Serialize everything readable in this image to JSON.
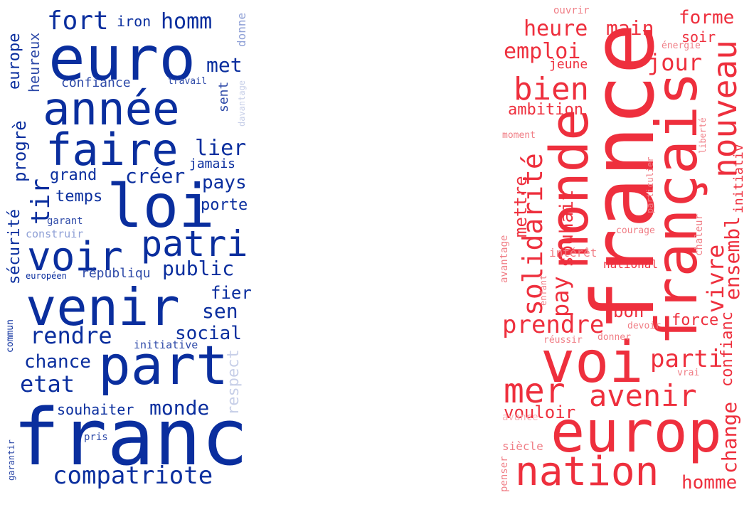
{
  "palette": {
    "blue_dark": "#0a2e9e",
    "blue_mid": "#2e4aa8",
    "blue_light": "#8fa0d6",
    "blue_pale": "#c7cfe8",
    "red": "#ee2f3d",
    "red_light": "#f07e86",
    "red_pale": "#f6b3b8"
  },
  "left_cloud": {
    "words": [
      {
        "text": "euro"
      },
      {
        "text": "année"
      },
      {
        "text": "faire"
      },
      {
        "text": "loi"
      },
      {
        "text": "voir"
      },
      {
        "text": "patri"
      },
      {
        "text": "venir"
      },
      {
        "text": "part"
      },
      {
        "text": "franc"
      },
      {
        "text": "compatriote"
      },
      {
        "text": "rendre"
      },
      {
        "text": "etat"
      },
      {
        "text": "chance"
      },
      {
        "text": "social"
      },
      {
        "text": "monde"
      },
      {
        "text": "souhaiter"
      },
      {
        "text": "fort"
      },
      {
        "text": "homm"
      },
      {
        "text": "iron"
      },
      {
        "text": "met"
      },
      {
        "text": "confiance"
      },
      {
        "text": "europe"
      },
      {
        "text": "heureux"
      },
      {
        "text": "progrè"
      },
      {
        "text": "tir"
      },
      {
        "text": "sécurité"
      },
      {
        "text": "grand"
      },
      {
        "text": "créer"
      },
      {
        "text": "lier"
      },
      {
        "text": "jamais"
      },
      {
        "text": "pays"
      },
      {
        "text": "temps"
      },
      {
        "text": "porte"
      },
      {
        "text": "public"
      },
      {
        "text": "fier"
      },
      {
        "text": "sen"
      },
      {
        "text": "sent"
      },
      {
        "text": "garant"
      },
      {
        "text": "construir"
      },
      {
        "text": "européen"
      },
      {
        "text": "républiqu"
      },
      {
        "text": "initiative"
      },
      {
        "text": "commun"
      },
      {
        "text": "pris"
      },
      {
        "text": "garantir"
      },
      {
        "text": "respect"
      },
      {
        "text": "donne"
      },
      {
        "text": "davantage"
      },
      {
        "text": "travail"
      }
    ]
  },
  "right_cloud": {
    "words": [
      {
        "text": "france"
      },
      {
        "text": "français"
      },
      {
        "text": "monde"
      },
      {
        "text": "europ"
      },
      {
        "text": "voi"
      },
      {
        "text": "nation"
      },
      {
        "text": "mer"
      },
      {
        "text": "avenir"
      },
      {
        "text": "nouveau"
      },
      {
        "text": "bien"
      },
      {
        "text": "solidarité"
      },
      {
        "text": "prendre"
      },
      {
        "text": "parti"
      },
      {
        "text": "heure"
      },
      {
        "text": "main"
      },
      {
        "text": "forme"
      },
      {
        "text": "emploi"
      },
      {
        "text": "jour"
      },
      {
        "text": "vivre"
      },
      {
        "text": "ensembl"
      },
      {
        "text": "confianc"
      },
      {
        "text": "initiativ"
      },
      {
        "text": "change"
      },
      {
        "text": "homme"
      },
      {
        "text": "vouloir"
      },
      {
        "text": "pay"
      },
      {
        "text": "souhait"
      },
      {
        "text": "mettre"
      },
      {
        "text": "bon"
      },
      {
        "text": "force"
      },
      {
        "text": "ambition"
      },
      {
        "text": "jeune"
      },
      {
        "text": "soir"
      },
      {
        "text": "ouvrir"
      },
      {
        "text": "énergie"
      },
      {
        "text": "moment"
      },
      {
        "text": "liberté"
      },
      {
        "text": "particulier"
      },
      {
        "text": "chaleur"
      },
      {
        "text": "courage"
      },
      {
        "text": "intérêt"
      },
      {
        "text": "national"
      },
      {
        "text": "avantage"
      },
      {
        "text": "enfant"
      },
      {
        "text": "devoir"
      },
      {
        "text": "réussir"
      },
      {
        "text": "donner"
      },
      {
        "text": "vrai"
      },
      {
        "text": "avance"
      },
      {
        "text": "siècle"
      },
      {
        "text": "penser"
      }
    ]
  }
}
